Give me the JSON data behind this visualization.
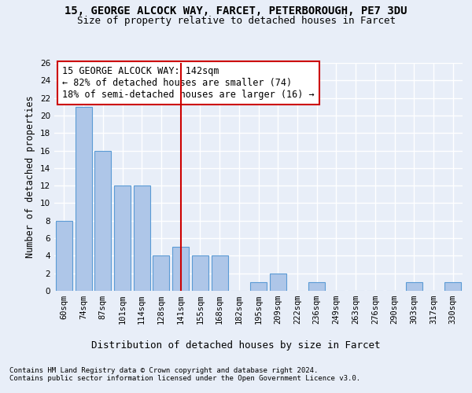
{
  "title1": "15, GEORGE ALCOCK WAY, FARCET, PETERBOROUGH, PE7 3DU",
  "title2": "Size of property relative to detached houses in Farcet",
  "xlabel": "Distribution of detached houses by size in Farcet",
  "ylabel": "Number of detached properties",
  "categories": [
    "60sqm",
    "74sqm",
    "87sqm",
    "101sqm",
    "114sqm",
    "128sqm",
    "141sqm",
    "155sqm",
    "168sqm",
    "182sqm",
    "195sqm",
    "209sqm",
    "222sqm",
    "236sqm",
    "249sqm",
    "263sqm",
    "276sqm",
    "290sqm",
    "303sqm",
    "317sqm",
    "330sqm"
  ],
  "values": [
    8,
    21,
    16,
    12,
    12,
    4,
    5,
    4,
    4,
    0,
    1,
    2,
    0,
    1,
    0,
    0,
    0,
    0,
    1,
    0,
    1
  ],
  "bar_color": "#aec6e8",
  "bar_edgecolor": "#5b9bd5",
  "vline_x_index": 6,
  "vline_color": "#cc0000",
  "annotation_text": "15 GEORGE ALCOCK WAY: 142sqm\n← 82% of detached houses are smaller (74)\n18% of semi-detached houses are larger (16) →",
  "annotation_box_color": "#ffffff",
  "annotation_box_edgecolor": "#cc0000",
  "ylim": [
    0,
    26
  ],
  "yticks": [
    0,
    2,
    4,
    6,
    8,
    10,
    12,
    14,
    16,
    18,
    20,
    22,
    24,
    26
  ],
  "footer1": "Contains HM Land Registry data © Crown copyright and database right 2024.",
  "footer2": "Contains public sector information licensed under the Open Government Licence v3.0.",
  "background_color": "#e8eef8",
  "grid_color": "#ffffff",
  "title1_fontsize": 10,
  "title2_fontsize": 9,
  "xlabel_fontsize": 9,
  "ylabel_fontsize": 8.5,
  "tick_fontsize": 7.5,
  "annotation_fontsize": 8.5,
  "footer_fontsize": 6.5
}
